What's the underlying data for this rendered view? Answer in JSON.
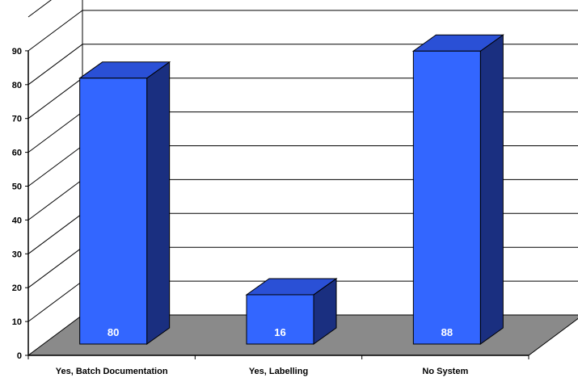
{
  "chart_data": {
    "type": "bar",
    "three_d": true,
    "categories": [
      "Yes, Batch Documentation",
      "Yes, Labelling",
      "No System"
    ],
    "values": [
      80,
      16,
      88
    ],
    "data_labels": [
      "80",
      "16",
      "88"
    ],
    "yticks": [
      "0",
      "10",
      "20",
      "30",
      "40",
      "50",
      "60",
      "70",
      "80",
      "90"
    ],
    "ylim": [
      0,
      100
    ],
    "grid": true,
    "legend": "none"
  },
  "colors": {
    "bar_front": "#3366ff",
    "bar_top": "#2a50d6",
    "bar_side": "#1a2f80",
    "floor": "#8a8a8a",
    "grid": "#000000",
    "label": "#ffffff"
  }
}
